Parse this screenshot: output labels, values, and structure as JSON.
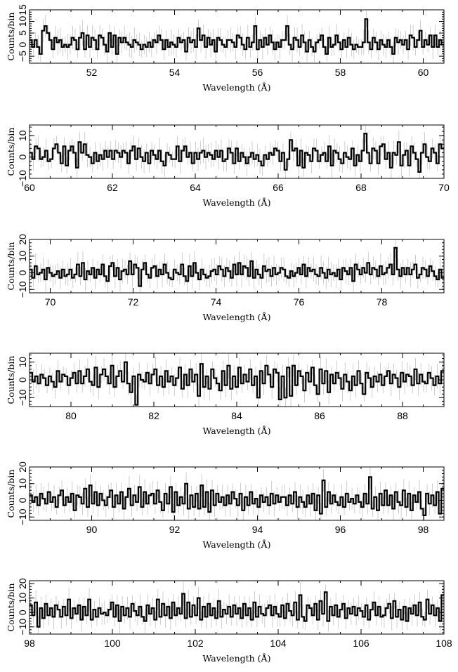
{
  "chart_data": [
    {
      "type": "line",
      "xlabel": "Wavelength (Å)",
      "ylabel": "Counts/bin",
      "xlim": [
        50.5,
        60.5
      ],
      "ylim": [
        -8,
        15
      ],
      "xticks": [
        52,
        54,
        56,
        58,
        60
      ],
      "yticks": [
        -5,
        0,
        5,
        10,
        15
      ],
      "ytick_labels": [
        "−5",
        "0",
        "5",
        "10",
        "15"
      ],
      "series": [
        {
          "values": [
            2,
            -1,
            2,
            -1,
            -4,
            6,
            8,
            5,
            2,
            -2,
            3,
            1,
            2,
            -1,
            0,
            -1,
            0,
            3,
            2,
            -2,
            3,
            5,
            -2,
            4,
            -1,
            3,
            2,
            -2,
            4,
            3,
            0,
            -3,
            5,
            -1,
            4,
            -4,
            3,
            1,
            3,
            1,
            0,
            -1,
            2,
            1,
            0,
            -2,
            0,
            -1,
            1,
            -1,
            2,
            1,
            4,
            2,
            -2,
            2,
            -1,
            1,
            0,
            -1,
            3,
            1,
            2,
            -3,
            3,
            1,
            2,
            -1,
            7,
            2,
            4,
            -1,
            3,
            0,
            2,
            -3,
            3,
            2,
            0,
            -1,
            2,
            2,
            1,
            -1,
            4,
            3,
            0,
            -2,
            3,
            -1,
            1,
            8,
            -2,
            2,
            -1,
            3,
            0,
            4,
            1,
            -2,
            1,
            -1,
            2,
            2,
            8,
            0,
            -2,
            3,
            2,
            -1,
            4,
            1,
            -3,
            2,
            -1,
            -3,
            1,
            2,
            4,
            -1,
            -4,
            3,
            -1,
            0,
            4,
            1,
            -2,
            2,
            -1,
            3,
            0,
            -2,
            0,
            -1,
            -1,
            1,
            11,
            1,
            -2,
            3,
            1,
            -2,
            2,
            0,
            -1,
            2,
            -1,
            -4,
            3,
            1,
            2,
            0,
            2,
            -2,
            4,
            3,
            -1,
            2,
            6,
            -1,
            2,
            0,
            4,
            -1,
            4,
            -1,
            2,
            0
          ]
        }
      ]
    },
    {
      "type": "line",
      "xlabel": "Wavelength (Å)",
      "ylabel": "Counts/bin",
      "xlim": [
        60,
        70
      ],
      "ylim": [
        -10,
        15
      ],
      "xticks": [
        60,
        62,
        64,
        66,
        68,
        70
      ],
      "yticks": [
        -10,
        0,
        10
      ],
      "ytick_labels": [
        "−10",
        "0",
        "10"
      ],
      "series": [
        {
          "values": [
            2,
            -1,
            5,
            4,
            -1,
            0,
            3,
            -2,
            -1,
            4,
            6,
            2,
            -3,
            5,
            -4,
            3,
            5,
            2,
            -5,
            7,
            2,
            6,
            1,
            0,
            -3,
            2,
            -2,
            1,
            -1,
            3,
            0,
            3,
            -1,
            3,
            2,
            0,
            3,
            2,
            -3,
            3,
            5,
            -1,
            4,
            0,
            -2,
            2,
            -3,
            3,
            1,
            -1,
            3,
            -2,
            -4,
            2,
            1,
            -1,
            -1,
            5,
            -2,
            3,
            5,
            0,
            2,
            -3,
            2,
            -1,
            2,
            3,
            0,
            2,
            1,
            -1,
            3,
            0,
            3,
            -2,
            -1,
            4,
            2,
            -3,
            4,
            -2,
            2,
            0,
            -3,
            0,
            2,
            -1,
            1,
            -2,
            -4,
            1,
            -1,
            2,
            1,
            4,
            3,
            -2,
            2,
            -6,
            -1,
            8,
            3,
            4,
            -4,
            3,
            -5,
            2,
            1,
            -2,
            4,
            3,
            -2,
            1,
            2,
            -2,
            5,
            -4,
            3,
            2,
            -1,
            -3,
            2,
            0,
            -1,
            4,
            -4,
            1,
            -2,
            3,
            11,
            2,
            -3,
            4,
            3,
            -3,
            5,
            6,
            -1,
            2,
            -5,
            2,
            1,
            7,
            -4,
            1,
            3,
            -4,
            5,
            2,
            -1,
            -7,
            2,
            6,
            0,
            -2,
            4,
            2,
            -3,
            6,
            4
          ]
        }
      ]
    },
    {
      "type": "line",
      "xlabel": "Wavelength (Å)",
      "ylabel": "Counts/bin",
      "xlim": [
        69.5,
        79.5
      ],
      "ylim": [
        -12,
        20
      ],
      "xticks": [
        70,
        72,
        74,
        76,
        78
      ],
      "yticks": [
        -10,
        0,
        10,
        20
      ],
      "ytick_labels": [
        "−10",
        "0",
        "10",
        "20"
      ],
      "series": [
        {
          "values": [
            2,
            -3,
            4,
            -1,
            0,
            2,
            -4,
            3,
            0,
            -2,
            -1,
            1,
            -3,
            2,
            -2,
            -1,
            2,
            -3,
            -1,
            5,
            -2,
            6,
            -4,
            1,
            -1,
            3,
            -3,
            2,
            -1,
            5,
            -2,
            -5,
            4,
            6,
            -2,
            3,
            -4,
            1,
            2,
            -1,
            7,
            -1,
            5,
            3,
            -8,
            2,
            6,
            -1,
            -3,
            3,
            4,
            -2,
            2,
            -1,
            5,
            0,
            -3,
            -4,
            2,
            0,
            -1,
            5,
            -2,
            -5,
            4,
            -2,
            6,
            0,
            -4,
            2,
            -1,
            -3,
            -2,
            1,
            2,
            -1,
            4,
            2,
            -2,
            3,
            1,
            -3,
            5,
            -1,
            6,
            -1,
            4,
            3,
            -2,
            7,
            -3,
            2,
            -1,
            -3,
            4,
            1,
            2,
            -2,
            3,
            -1,
            0,
            3,
            2,
            -2,
            -3,
            1,
            -2,
            0,
            3,
            -1,
            5,
            -2,
            3,
            1,
            2,
            -1,
            -2,
            3,
            0,
            -3,
            2,
            -1,
            0,
            -2,
            2,
            -4,
            3,
            1,
            -1,
            3,
            -5,
            5,
            2,
            -1,
            3,
            0,
            6,
            -1,
            3,
            2,
            -2,
            4,
            -1,
            0,
            3,
            5,
            -1,
            15,
            2,
            -2,
            3,
            -1,
            3,
            -1,
            2,
            5,
            -3,
            -1,
            3,
            2,
            -2,
            4,
            1,
            -2,
            -4,
            2,
            -3
          ]
        }
      ]
    },
    {
      "type": "line",
      "xlabel": "Wavelength (Å)",
      "ylabel": "Counts/bin",
      "xlim": [
        79,
        89
      ],
      "ylim": [
        -15,
        15
      ],
      "xticks": [
        80,
        82,
        84,
        86,
        88
      ],
      "yticks": [
        -10,
        0,
        10
      ],
      "ytick_labels": [
        "−10",
        "0",
        "10"
      ],
      "series": [
        {
          "values": [
            4,
            -1,
            2,
            -2,
            3,
            1,
            -3,
            2,
            -1,
            -4,
            5,
            -1,
            3,
            2,
            -3,
            1,
            4,
            -2,
            5,
            -2,
            2,
            6,
            -1,
            -3,
            7,
            -4,
            3,
            6,
            2,
            -2,
            8,
            -4,
            2,
            5,
            -1,
            10,
            -2,
            -7,
            2,
            -14,
            3,
            0,
            -1,
            4,
            -2,
            3,
            6,
            -3,
            2,
            -4,
            5,
            -1,
            2,
            -3,
            1,
            7,
            -5,
            3,
            -3,
            6,
            -1,
            3,
            -9,
            9,
            -4,
            2,
            -5,
            6,
            1,
            -2,
            -6,
            5,
            -3,
            8,
            -5,
            2,
            -4,
            7,
            -2,
            3,
            -1,
            6,
            -3,
            2,
            -10,
            5,
            -2,
            8,
            3,
            -4,
            6,
            4,
            -11,
            2,
            -10,
            7,
            -9,
            8,
            -3,
            5,
            2,
            -6,
            4,
            -1,
            7,
            -3,
            -8,
            6,
            -2,
            5,
            -7,
            3,
            -2,
            4,
            1,
            -5,
            3,
            -1,
            -6,
            2,
            -3,
            5,
            -2,
            -8,
            4,
            1,
            -4,
            2,
            -1,
            3,
            -3,
            2,
            5,
            -2,
            3,
            1,
            -4,
            4,
            -1,
            3,
            2,
            -3,
            6,
            -2,
            3,
            -1,
            -2,
            4,
            1,
            -3,
            2,
            -2,
            5
          ]
        }
      ]
    },
    {
      "type": "line",
      "xlabel": "Wavelength (Å)",
      "ylabel": "Counts/bin",
      "xlim": [
        88.5,
        98.5
      ],
      "ylim": [
        -12,
        20
      ],
      "xticks": [
        90,
        92,
        94,
        96,
        98
      ],
      "yticks": [
        -10,
        0,
        10,
        20
      ],
      "ytick_labels": [
        "−10",
        "0",
        "10",
        "20"
      ],
      "series": [
        {
          "values": [
            3,
            -1,
            2,
            -3,
            4,
            1,
            -2,
            5,
            -1,
            2,
            -4,
            3,
            6,
            -3,
            2,
            -1,
            4,
            -6,
            3,
            2,
            -2,
            7,
            -4,
            9,
            -2,
            5,
            -3,
            4,
            0,
            -3,
            2,
            6,
            -4,
            3,
            -2,
            5,
            -5,
            2,
            7,
            -3,
            3,
            -1,
            8,
            -4,
            5,
            -2,
            3,
            4,
            -2,
            6,
            -1,
            -6,
            4,
            -2,
            8,
            -7,
            5,
            -3,
            2,
            -2,
            10,
            -5,
            3,
            -4,
            4,
            -5,
            9,
            -4,
            5,
            -7,
            6,
            -3,
            4,
            -1,
            2,
            -3,
            3,
            -2,
            5,
            1,
            -3,
            4,
            -6,
            2,
            -3,
            5,
            -2,
            1,
            -4,
            3,
            -1,
            2,
            -3,
            4,
            -2,
            3,
            -1,
            2,
            2,
            -3,
            3,
            -2,
            5,
            -4,
            2,
            -1,
            -4,
            3,
            -2,
            4,
            -6,
            3,
            -8,
            12,
            -4,
            5,
            -2,
            3,
            -1,
            -3,
            2,
            -4,
            4,
            -1,
            1,
            -2,
            3,
            -1,
            -4,
            4,
            -2,
            14,
            -5,
            2,
            -6,
            4,
            -3,
            6,
            -3,
            3,
            -5,
            5,
            -1,
            -3,
            6,
            -4,
            4,
            -6,
            3,
            -1,
            5,
            -5,
            -9,
            4,
            -2,
            3,
            -3,
            5,
            -8,
            7
          ]
        }
      ]
    },
    {
      "type": "line",
      "xlabel": "Wavelength (Å)",
      "ylabel": "Counts/bin",
      "xlim": [
        98,
        108
      ],
      "ylim": [
        -15,
        22
      ],
      "xticks": [
        98,
        100,
        102,
        104,
        106,
        108
      ],
      "yticks": [
        -10,
        0,
        10,
        20
      ],
      "ytick_labels": [
        "−10",
        "0",
        "10",
        "20"
      ],
      "series": [
        {
          "values": [
            5,
            -2,
            7,
            -10,
            3,
            -4,
            6,
            -2,
            3,
            -3,
            5,
            2,
            -3,
            4,
            -2,
            9,
            -4,
            3,
            -1,
            5,
            -5,
            4,
            -2,
            9,
            -5,
            2,
            -3,
            3,
            -1,
            0,
            -2,
            2,
            7,
            -3,
            5,
            -6,
            4,
            -2,
            3,
            -3,
            6,
            1,
            -2,
            4,
            -3,
            -6,
            5,
            -1,
            3,
            -5,
            9,
            -3,
            6,
            -2,
            4,
            -4,
            7,
            -2,
            3,
            -1,
            13,
            -4,
            7,
            -3,
            5,
            -2,
            10,
            -5,
            4,
            -3,
            6,
            -2,
            3,
            -4,
            8,
            -3,
            2,
            -1,
            4,
            -3,
            5,
            -1,
            3,
            -4,
            6,
            -2,
            3,
            -5,
            7,
            -3,
            4,
            -1,
            -2,
            3,
            5,
            -2,
            4,
            -1,
            -3,
            5,
            -4,
            6,
            1,
            -2,
            7,
            -5,
            12,
            -3,
            -6,
            5,
            3,
            -2,
            6,
            -5,
            8,
            -1,
            14,
            -6,
            4,
            -2,
            5,
            -3,
            2,
            6,
            -4,
            3,
            -1,
            4,
            -2,
            3,
            1,
            -3,
            5,
            -5,
            2,
            7,
            -2,
            4,
            -3,
            -2,
            3,
            6,
            -4,
            8,
            -3,
            2,
            -5,
            4,
            -6,
            3,
            -1,
            5,
            -2,
            7,
            -3,
            -5,
            9,
            -1,
            5,
            -2,
            3,
            -6,
            12
          ]
        }
      ]
    }
  ]
}
